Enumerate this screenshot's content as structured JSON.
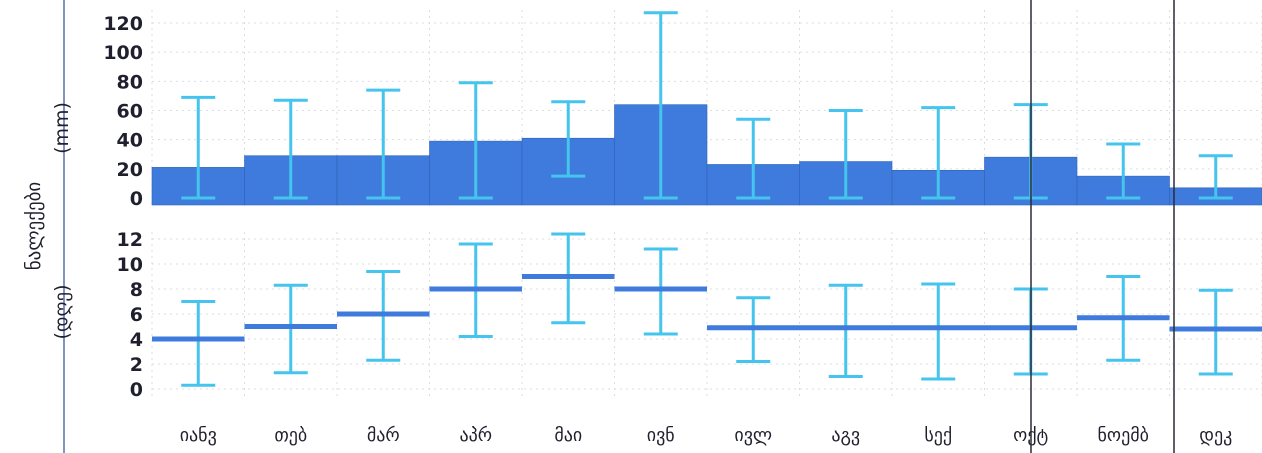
{
  "chart_data": [
    {
      "type": "bar",
      "categories": [
        "იანვ",
        "თებ",
        "მარ",
        "აპრ",
        "მაი",
        "ივნ",
        "ივლ",
        "აგვ",
        "სექ",
        "ოქტ",
        "ნოემბ",
        "დეკ"
      ],
      "series": [
        {
          "values": [
            21,
            29,
            29,
            39,
            41,
            64,
            23,
            25,
            19,
            28,
            15,
            7
          ],
          "error_high": [
            69,
            67,
            74,
            79,
            66,
            127,
            54,
            60,
            62,
            64,
            37,
            29
          ],
          "error_low": [
            0,
            0,
            0,
            0,
            15,
            0,
            0,
            0,
            0,
            0,
            0,
            0
          ]
        }
      ],
      "ylabel": "(mm)",
      "yticks": [
        0,
        20,
        40,
        60,
        80,
        100,
        120
      ],
      "ylim": [
        -5,
        130
      ],
      "grid": true,
      "colors": {
        "bar": "#3f7bdc",
        "error": "#45c4ee"
      }
    },
    {
      "type": "line",
      "categories": [
        "იანვ",
        "თებ",
        "მარ",
        "აპრ",
        "მაი",
        "ივნ",
        "ივლ",
        "აგვ",
        "სექ",
        "ოქტ",
        "ნოემბ",
        "დეკ"
      ],
      "series": [
        {
          "values": [
            4,
            5,
            6,
            8,
            9,
            8,
            4.9,
            4.9,
            4.9,
            4.9,
            5.7,
            4.8
          ],
          "error_high": [
            7,
            8.3,
            9.4,
            11.6,
            12.4,
            11.2,
            7.3,
            8.3,
            8.4,
            8,
            9,
            7.9
          ],
          "error_low": [
            0.3,
            1.3,
            2.3,
            4.2,
            5.3,
            4.4,
            2.2,
            1,
            0.8,
            1.2,
            2.3,
            1.2
          ]
        }
      ],
      "ylabel": "(დღე)",
      "yticks": [
        0,
        2,
        4,
        6,
        8,
        10,
        12
      ],
      "ylim": [
        -0.5,
        12.7
      ],
      "grid": true,
      "colors": {
        "line": "#3f7bdc",
        "error": "#45c4ee"
      }
    }
  ],
  "shared_ylabel": "ნალექები"
}
